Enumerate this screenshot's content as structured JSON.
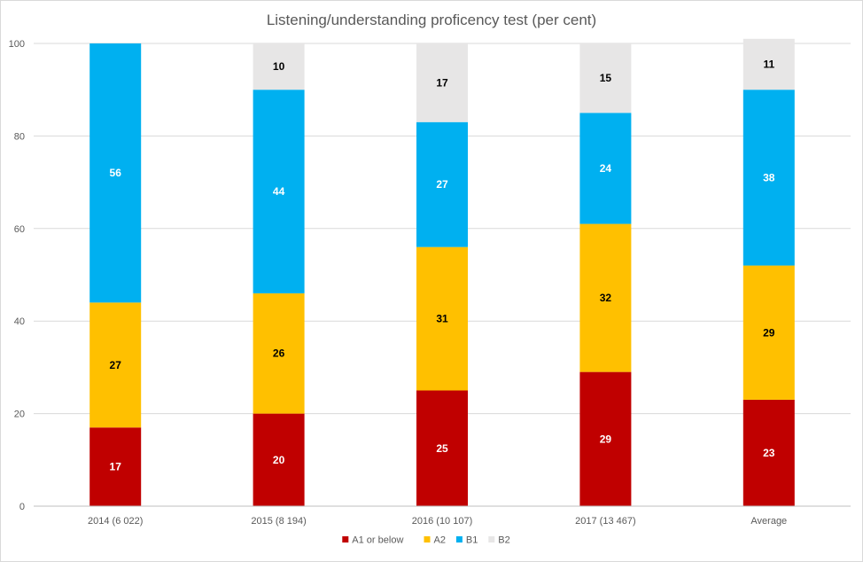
{
  "chart_data": {
    "type": "bar",
    "stacked": true,
    "title": "Listening/understanding proficency test (per cent)",
    "xlabel": "",
    "ylabel": "",
    "ylim": [
      0,
      100
    ],
    "yticks": [
      0,
      20,
      40,
      60,
      80,
      100
    ],
    "grid": true,
    "legend_position": "bottom",
    "categories": [
      "2014 (6 022)",
      "2015 (8 194)",
      "2016 (10 107)",
      "2017 (13 467)",
      "Average"
    ],
    "series": [
      {
        "name": "A1 or below",
        "color": "#c00000",
        "label_color": "#ffffff",
        "values": [
          17,
          20,
          25,
          29,
          23
        ]
      },
      {
        "name": "A2",
        "color": "#ffc000",
        "label_color": "#000000",
        "values": [
          27,
          26,
          31,
          32,
          29
        ]
      },
      {
        "name": "B1",
        "color": "#00b0f0",
        "label_color": "#ffffff",
        "values": [
          56,
          44,
          27,
          24,
          38
        ]
      },
      {
        "name": "B2",
        "color": "#e7e6e6",
        "label_color": "#000000",
        "values": [
          0,
          10,
          17,
          15,
          11
        ]
      }
    ]
  }
}
